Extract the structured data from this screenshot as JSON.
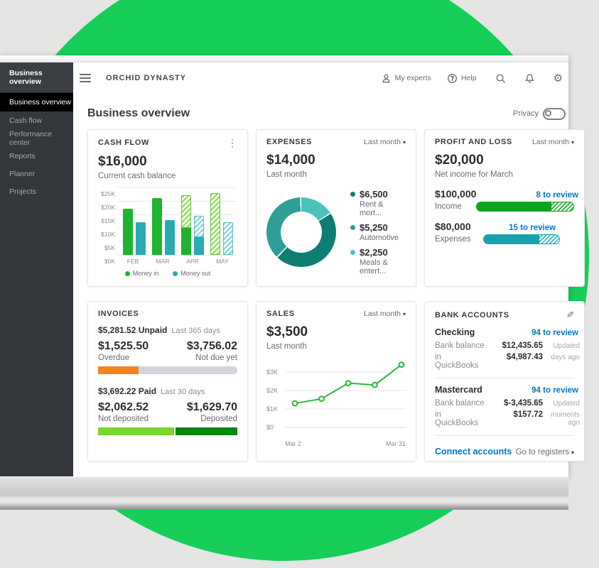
{
  "sidebar": {
    "header": "Business overview",
    "items": [
      {
        "label": "Business overview",
        "active": true
      },
      {
        "label": "Cash flow"
      },
      {
        "label": "Performance center"
      },
      {
        "label": "Reports"
      },
      {
        "label": "Planner"
      },
      {
        "label": "Projects"
      }
    ]
  },
  "topbar": {
    "company": "ORCHID DYNASTY",
    "my_experts": "My experts",
    "help": "Help"
  },
  "page": {
    "title": "Business overview",
    "privacy_label": "Privacy"
  },
  "cards": {
    "cash_flow": {
      "title": "CASH FLOW",
      "amount": "$16,000",
      "subtitle": "Current cash balance",
      "legend_in": "Money in",
      "legend_out": "Money out"
    },
    "expenses": {
      "title": "EXPENSES",
      "period": "Last month",
      "amount": "$14,000",
      "subtitle": "Last month",
      "legend": [
        {
          "value": "$6,500",
          "label": "Rent & mort...",
          "color": "#0e7e74"
        },
        {
          "value": "$5,250",
          "label": "Automotive",
          "color": "#2f9e96"
        },
        {
          "value": "$2,250",
          "label": "Meals & entert...",
          "color": "#48c4bd"
        }
      ]
    },
    "profit_loss": {
      "title": "PROFIT AND LOSS",
      "period": "Last month",
      "amount": "$20,000",
      "subtitle": "Net income for March",
      "income_value": "$100,000",
      "income_label": "Income",
      "income_review": "8 to review",
      "expenses_value": "$80,000",
      "expenses_label": "Expenses",
      "expenses_review": "15 to review"
    },
    "invoices": {
      "title": "INVOICES",
      "unpaid_amount": "$5,281.52 Unpaid",
      "unpaid_period": "Last 365 days",
      "overdue_value": "$1,525.50",
      "overdue_label": "Overdue",
      "notdue_value": "$3,756.02",
      "notdue_label": "Not due yet",
      "paid_amount": "$3,692.22 Paid",
      "paid_period": "Last 30 days",
      "notdeposited_value": "$2,062.52",
      "notdeposited_label": "Not deposited",
      "deposited_value": "$1,629.70",
      "deposited_label": "Deposited"
    },
    "sales": {
      "title": "SALES",
      "period": "Last month",
      "amount": "$3,500",
      "subtitle": "Last month"
    },
    "bank_accounts": {
      "title": "BANK ACCOUNTS",
      "accounts": [
        {
          "name": "Checking",
          "review": "94 to review",
          "bank_balance_label": "Bank balance",
          "bank_balance": "$12,435.65",
          "qb_label": "in QuickBooks",
          "qb_balance": "$4,987.43",
          "updated_line1": "Updated",
          "updated_line2": "days ago"
        },
        {
          "name": "Mastercard",
          "review": "94 to review",
          "bank_balance_label": "Bank balance",
          "bank_balance": "$-3,435.65",
          "qb_label": "in QuickBooks",
          "qb_balance": "$157.72",
          "updated_line1": "Updated",
          "updated_line2": "moments ago"
        }
      ],
      "connect": "Connect accounts",
      "registers": "Go to registers"
    }
  },
  "colors": {
    "brand_green": "#16ce58",
    "money_in": "#1fb42d",
    "money_in_forecast": "#9ade64",
    "money_out": "#2ba9b4",
    "money_out_forecast": "#8fd4db",
    "link_blue": "#0077c5",
    "overdue_orange": "#f6821f",
    "not_deposited_lime": "#76d62b",
    "deposited_green": "#0e8512",
    "sales_line": "#27b93a"
  },
  "chart_data": {
    "cash_flow": {
      "type": "bar",
      "title": "CASH FLOW",
      "categories": [
        "FEB",
        "MAR",
        "APR",
        "MAY"
      ],
      "series": [
        {
          "name": "Money in",
          "solid": [
            17000,
            21000,
            10000,
            0
          ],
          "forecast": [
            0,
            0,
            12000,
            23000
          ]
        },
        {
          "name": "Money out",
          "solid": [
            12000,
            13000,
            6500,
            0
          ],
          "forecast": [
            0,
            0,
            8000,
            12000
          ]
        }
      ],
      "ylim": [
        0,
        25000
      ],
      "yticks": [
        "$25K",
        "$20K",
        "$15K",
        "$10K",
        "$5K",
        "$0K"
      ],
      "grid": true,
      "legend_position": "bottom"
    },
    "expenses_donut": {
      "type": "pie",
      "title": "EXPENSES",
      "labels": [
        "Rent & mort...",
        "Automotive",
        "Meals & entert..."
      ],
      "values": [
        6500,
        5250,
        2250
      ],
      "total": 14000,
      "colors": [
        "#0e7e74",
        "#2f9e96",
        "#48c4bd"
      ],
      "legend_position": "right"
    },
    "profit_loss_bars": {
      "type": "bar",
      "categories": [
        "Income",
        "Expenses"
      ],
      "values": [
        100000,
        80000
      ],
      "to_review": [
        8,
        15
      ]
    },
    "invoices_bars": {
      "type": "bar",
      "unpaid": {
        "overdue": 1525.5,
        "not_due": 3756.02,
        "total": 5281.52
      },
      "paid": {
        "not_deposited": 2062.52,
        "deposited": 1629.7,
        "total": 3692.22
      }
    },
    "sales": {
      "type": "line",
      "title": "SALES",
      "x_labels_shown": [
        "Mar 2",
        "Mar 31"
      ],
      "values": [
        1300,
        1550,
        2400,
        2300,
        3400
      ],
      "ylim": [
        0,
        3500
      ],
      "yticks": [
        {
          "label": "$3K",
          "value": 3000
        },
        {
          "label": "$2K",
          "value": 2000
        },
        {
          "label": "$1K",
          "value": 1000
        },
        {
          "label": "$0",
          "value": 0
        }
      ],
      "grid": true
    }
  }
}
